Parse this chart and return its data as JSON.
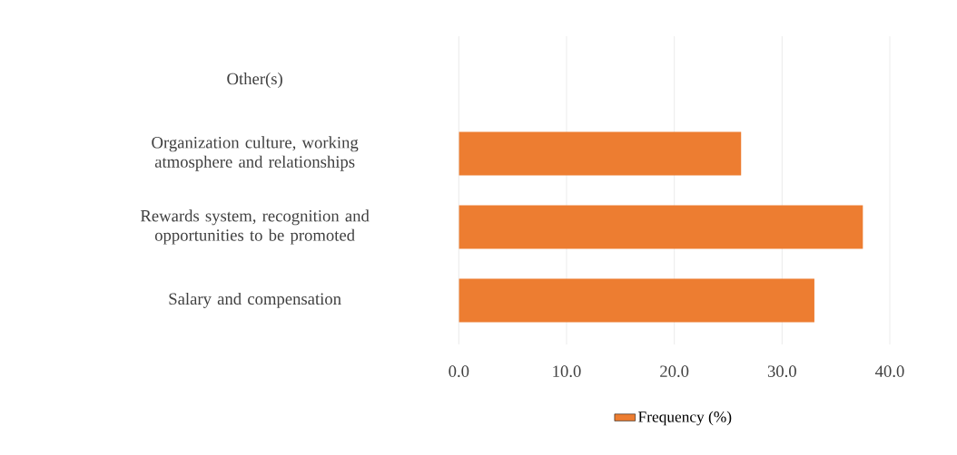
{
  "chart_data": {
    "type": "bar",
    "orientation": "horizontal",
    "categories": [
      "Other(s)",
      "Organization culture, working atmosphere and relationships",
      "Rewards system, recognition and opportunities to be promoted",
      "Salary and compensation"
    ],
    "series": [
      {
        "name": "Frequency (%)",
        "color": "#ed7d31",
        "values": [
          0,
          26.2,
          37.5,
          33.0
        ]
      }
    ],
    "xlim": [
      0,
      40
    ],
    "xticks": [
      {
        "value": 0,
        "label": "0.0"
      },
      {
        "value": 10,
        "label": "10.0"
      },
      {
        "value": 20,
        "label": "20.0"
      },
      {
        "value": 30,
        "label": "30.0"
      },
      {
        "value": 40,
        "label": "40.0"
      }
    ],
    "grid": "x",
    "legend": "bottom"
  }
}
